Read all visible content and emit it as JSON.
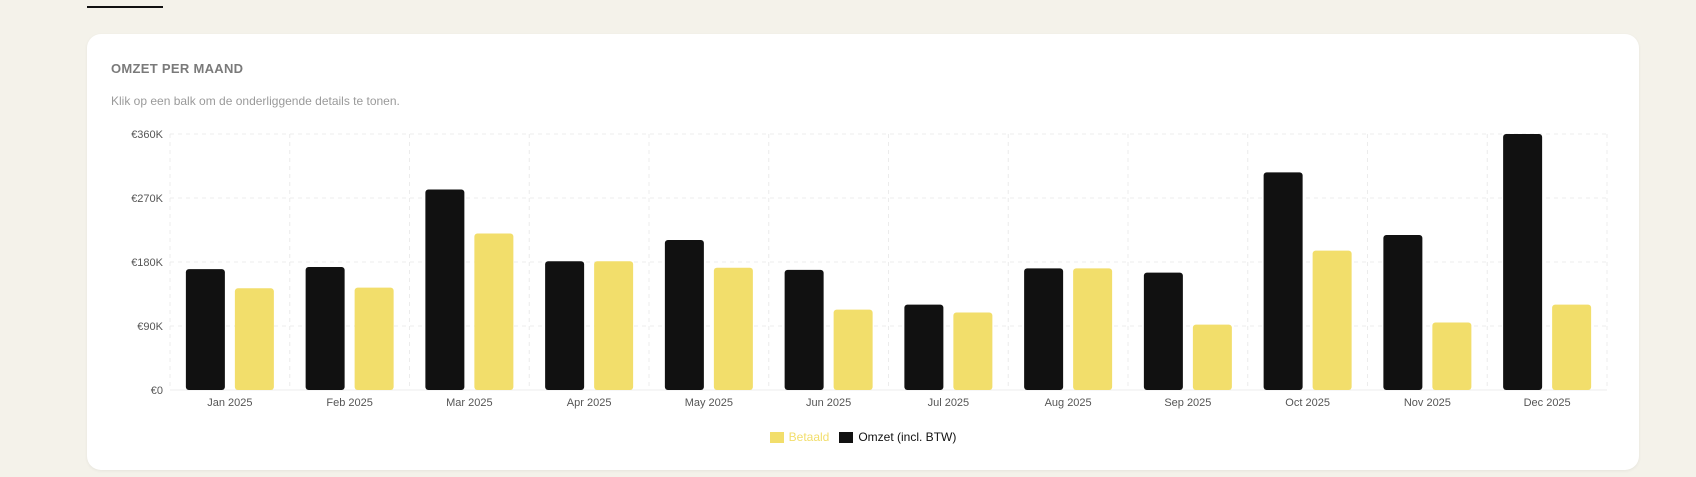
{
  "card": {
    "title": "OMZET PER MAAND",
    "subtitle": "Klik op een balk om de onderliggende details te tonen."
  },
  "colors": {
    "omzet": "#111111",
    "betaald": "#f2de6b",
    "grid": "#ececec",
    "axis_text": "#555555",
    "background": "#f4f2ea"
  },
  "legend": {
    "betaald_label": "Betaald",
    "omzet_label": "Omzet (incl. BTW)"
  },
  "chart_data": {
    "type": "bar",
    "title": "OMZET PER MAAND",
    "categories": [
      "Jan 2025",
      "Feb 2025",
      "Mar 2025",
      "Apr 2025",
      "May 2025",
      "Jun 2025",
      "Jul 2025",
      "Aug 2025",
      "Sep 2025",
      "Oct 2025",
      "Nov 2025",
      "Dec 2025"
    ],
    "series": [
      {
        "name": "Omzet (incl. BTW)",
        "color": "#111111",
        "values": [
          170000,
          173000,
          282000,
          181000,
          211000,
          169000,
          120000,
          171000,
          165000,
          306000,
          218000,
          360000
        ]
      },
      {
        "name": "Betaald",
        "color": "#f2de6b",
        "values": [
          143000,
          144000,
          220000,
          181000,
          172000,
          113000,
          109000,
          171000,
          92000,
          196000,
          95000,
          120000
        ]
      }
    ],
    "y_ticks": [
      "€0",
      "€90K",
      "€180K",
      "€270K",
      "€360K"
    ],
    "y_tick_values": [
      0,
      90000,
      180000,
      270000,
      360000
    ],
    "ylim": [
      0,
      360000
    ],
    "grid": true,
    "legend_position": "bottom-center"
  }
}
